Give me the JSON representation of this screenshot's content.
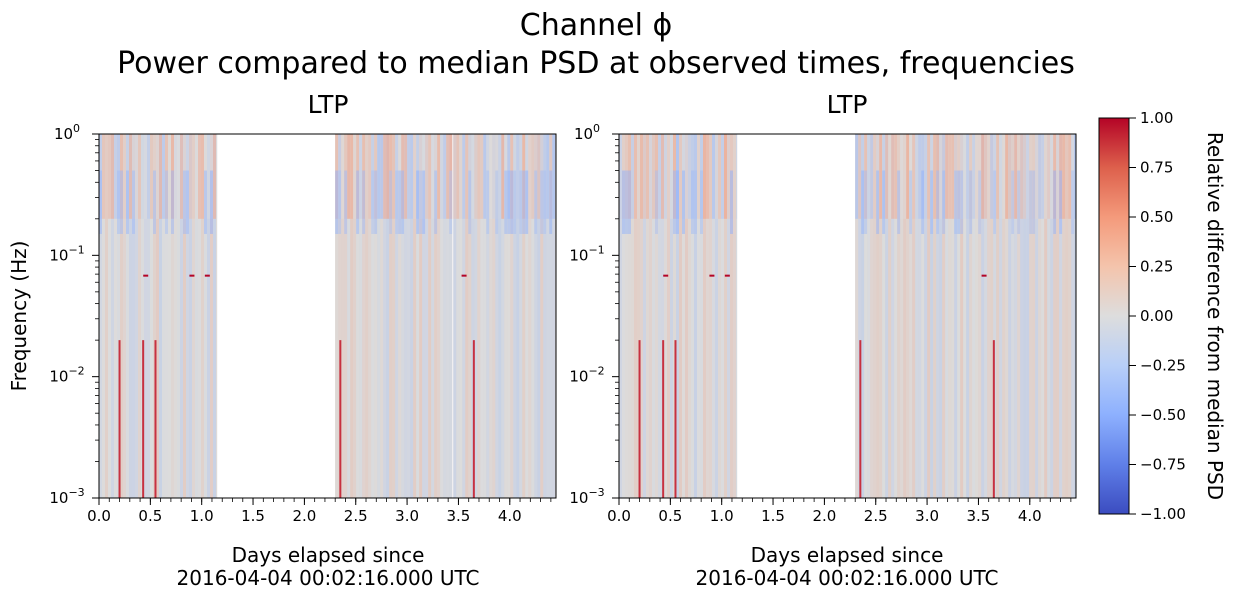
{
  "figure": {
    "title_line1": "Channel ϕ",
    "title_line2": "Power compared to median PSD at observed times, frequencies"
  },
  "chart_data": [
    {
      "type": "heatmap",
      "title": "LTP",
      "xlabel_line1": "Days elapsed since",
      "xlabel_line2": "2016-04-04 00:02:16.000 UTC",
      "ylabel": "Frequency (Hz)",
      "xlim": [
        0,
        4.45
      ],
      "ylim": [
        0.001,
        1
      ],
      "yscale": "log",
      "x_ticks": [
        "0.0",
        "0.5",
        "1.0",
        "1.5",
        "2.0",
        "2.5",
        "3.0",
        "3.5",
        "4.0"
      ],
      "y_ticks": [
        {
          "base": "10",
          "exp": "−3"
        },
        {
          "base": "10",
          "exp": "−2"
        },
        {
          "base": "10",
          "exp": "−1"
        },
        {
          "base": "10",
          "exp": "0"
        }
      ],
      "data_segments": [
        [
          0,
          1.15
        ],
        [
          2.3,
          3.44
        ],
        [
          3.45,
          4.45
        ]
      ],
      "spike_lines_days": [
        0.2,
        0.43,
        0.55,
        2.35,
        3.65
      ],
      "red_marks": [
        {
          "x": 0.45,
          "y": 0.068
        },
        {
          "x": 0.9,
          "y": 0.068
        },
        {
          "x": 1.05,
          "y": 0.068
        },
        {
          "x": 3.55,
          "y": 0.068
        }
      ],
      "show_ylabel": true
    },
    {
      "type": "heatmap",
      "title": "LTP",
      "xlabel_line1": "Days elapsed since",
      "xlabel_line2": "2016-04-04 00:02:16.000 UTC",
      "ylabel": "",
      "xlim": [
        0,
        4.45
      ],
      "ylim": [
        0.001,
        1
      ],
      "yscale": "log",
      "x_ticks": [
        "0.0",
        "0.5",
        "1.0",
        "1.5",
        "2.0",
        "2.5",
        "3.0",
        "3.5",
        "4.0"
      ],
      "y_ticks": [
        {
          "base": "10",
          "exp": "−3"
        },
        {
          "base": "10",
          "exp": "−2"
        },
        {
          "base": "10",
          "exp": "−1"
        },
        {
          "base": "10",
          "exp": "0"
        }
      ],
      "data_segments": [
        [
          0,
          1.15
        ],
        [
          2.3,
          4.45
        ]
      ],
      "spike_lines_days": [
        0.2,
        0.43,
        0.55,
        2.35,
        3.65
      ],
      "red_marks": [
        {
          "x": 0.45,
          "y": 0.068
        },
        {
          "x": 0.9,
          "y": 0.068
        },
        {
          "x": 1.05,
          "y": 0.068
        },
        {
          "x": 3.55,
          "y": 0.068
        }
      ],
      "show_ylabel": false
    }
  ],
  "colorbar": {
    "label": "Relative difference from median PSD",
    "range": [
      -1,
      1
    ],
    "ticks": [
      "1.00",
      "0.75",
      "0.50",
      "0.25",
      "0.00",
      "−0.25",
      "−0.50",
      "−0.75",
      "−1.00"
    ],
    "colormap": "coolwarm",
    "color_low": "#3b4cc0",
    "color_mid": "#dddddd",
    "color_high": "#b40426"
  }
}
